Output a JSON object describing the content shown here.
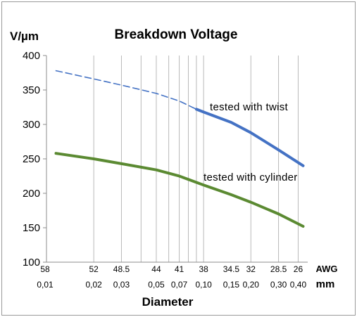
{
  "chart_data": {
    "type": "line",
    "title": "Breakdown Voltage",
    "ylabel": "V/µm",
    "xlabel": "Diameter",
    "ylim": [
      100,
      400
    ],
    "yticks": [
      "100",
      "150",
      "200",
      "250",
      "300",
      "350",
      "400"
    ],
    "x_axis_names": {
      "awg": "AWG",
      "mm": "mm"
    },
    "x_ticks": [
      {
        "awg": "58",
        "mm": "0,01"
      },
      {
        "awg": "52",
        "mm": "0,02"
      },
      {
        "awg": "48.5",
        "mm": "0,03"
      },
      {
        "awg": "44",
        "mm": "0,05"
      },
      {
        "awg": "41",
        "mm": "0,07"
      },
      {
        "awg": "38",
        "mm": "0,10"
      },
      {
        "awg": "34.5",
        "mm": "0,15"
      },
      {
        "awg": "32",
        "mm": "0,20"
      },
      {
        "awg": "28.5",
        "mm": "0,30"
      },
      {
        "awg": "26",
        "mm": "0,40"
      }
    ],
    "x_scale": "log",
    "grid": "vertical",
    "series": [
      {
        "name": "tested with twist",
        "color": "#4472C4",
        "points": [
          {
            "mm": 0.0115,
            "v": 378,
            "style": "dashed"
          },
          {
            "mm": 0.02,
            "v": 366,
            "style": "dashed"
          },
          {
            "mm": 0.03,
            "v": 357,
            "style": "dashed"
          },
          {
            "mm": 0.05,
            "v": 345,
            "style": "dashed"
          },
          {
            "mm": 0.07,
            "v": 334,
            "style": "dashed"
          },
          {
            "mm": 0.09,
            "v": 322,
            "style": "solid"
          },
          {
            "mm": 0.1,
            "v": 318,
            "style": "solid"
          },
          {
            "mm": 0.15,
            "v": 303,
            "style": "solid"
          },
          {
            "mm": 0.2,
            "v": 288,
            "style": "solid"
          },
          {
            "mm": 0.3,
            "v": 263,
            "style": "solid"
          },
          {
            "mm": 0.43,
            "v": 240,
            "style": "solid"
          }
        ]
      },
      {
        "name": "tested with cylinder",
        "color": "#5B8A32",
        "points": [
          {
            "mm": 0.0115,
            "v": 258,
            "style": "solid"
          },
          {
            "mm": 0.02,
            "v": 250,
            "style": "solid"
          },
          {
            "mm": 0.03,
            "v": 243,
            "style": "solid"
          },
          {
            "mm": 0.05,
            "v": 234,
            "style": "solid"
          },
          {
            "mm": 0.07,
            "v": 225,
            "style": "solid"
          },
          {
            "mm": 0.1,
            "v": 212,
            "style": "solid"
          },
          {
            "mm": 0.15,
            "v": 198,
            "style": "solid"
          },
          {
            "mm": 0.2,
            "v": 187,
            "style": "solid"
          },
          {
            "mm": 0.3,
            "v": 170,
            "style": "solid"
          },
          {
            "mm": 0.43,
            "v": 152,
            "style": "solid"
          }
        ]
      }
    ]
  }
}
